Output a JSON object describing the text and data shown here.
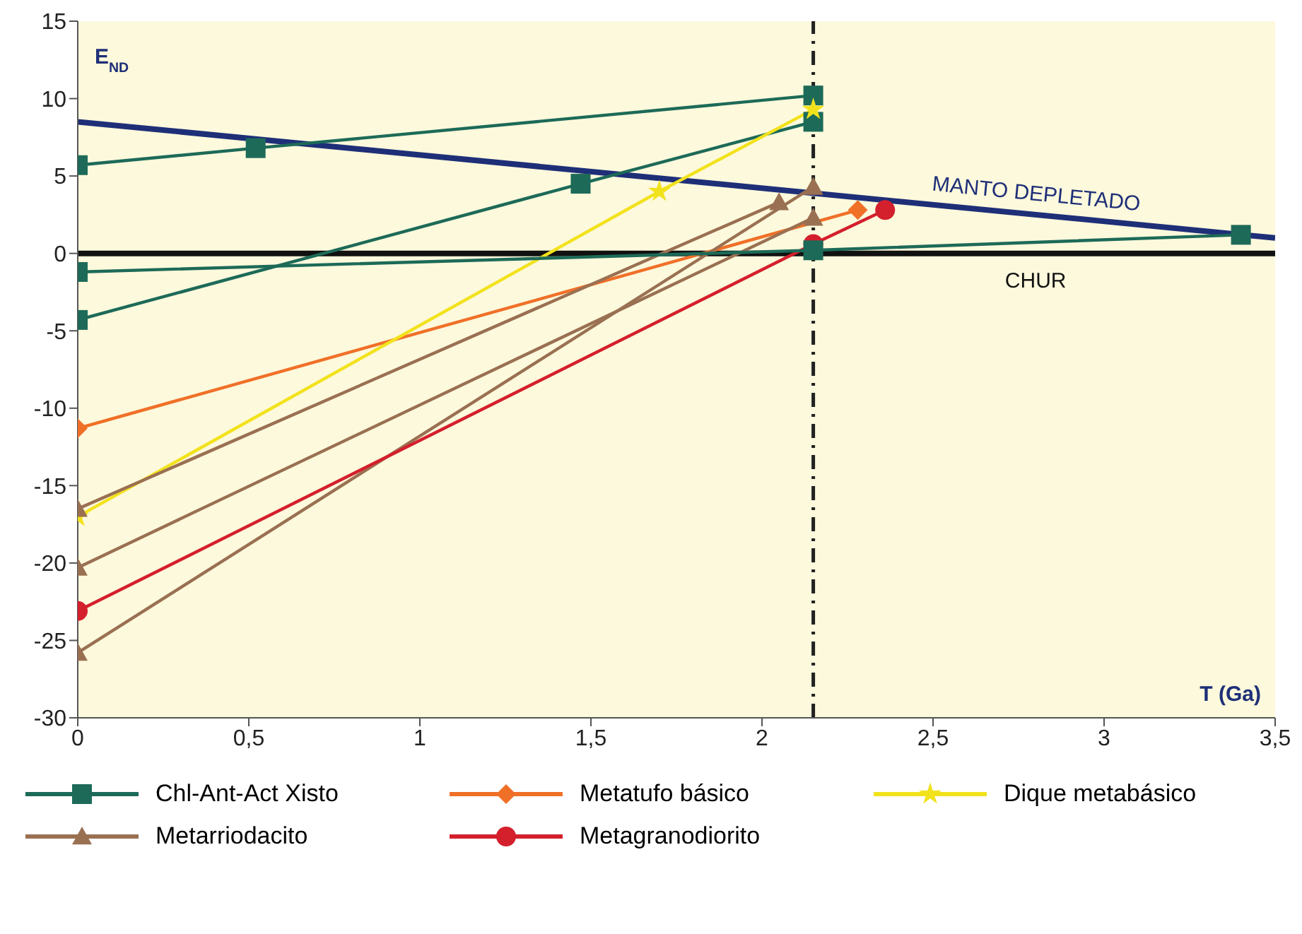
{
  "chart_data": {
    "type": "line",
    "xlabel": "T (Ga)",
    "ylabel": "E$_{ND}$",
    "xlim": [
      0,
      3.5
    ],
    "ylim": [
      -30,
      15
    ],
    "xticks": [
      0,
      {
        "value": 0.5,
        "label": "0,5"
      },
      1,
      {
        "value": 1.5,
        "label": "1,5"
      },
      2,
      {
        "value": 2.5,
        "label": "2,5"
      },
      3,
      {
        "value": 3.5,
        "label": "3,5"
      }
    ],
    "yticks": [
      -30,
      -25,
      -20,
      -15,
      -10,
      -5,
      0,
      5,
      10,
      15
    ],
    "legend": "bottom",
    "ref_lines": [
      {
        "axis": "x",
        "value": 2.15,
        "color": "#222222",
        "line_style": "dashdot"
      }
    ],
    "series": [
      {
        "name": "MANTO DEPLETADO",
        "color": "#1e2f78",
        "marker": "none",
        "x": [
          0,
          3.5
        ],
        "values": [
          8.5,
          1.0
        ]
      },
      {
        "name": "CHUR",
        "color": "#111111",
        "marker": "none",
        "x": [
          0,
          3.5
        ],
        "values": [
          0,
          0
        ]
      },
      {
        "name": "Chl-Ant-Act Xisto",
        "color": "#1d6a58",
        "marker": "square",
        "x": [
          0,
          0.52,
          2.15
        ],
        "values": [
          5.7,
          6.8,
          10.2
        ]
      },
      {
        "color": "#1d6a58",
        "marker": "square",
        "x": [
          0,
          1.47,
          2.15
        ],
        "values": [
          -4.3,
          4.5,
          8.5
        ]
      },
      {
        "name": "Metatufo básico",
        "color": "#f07028",
        "marker": "diamond",
        "x": [
          0,
          2.28
        ],
        "values": [
          -11.3,
          2.8
        ]
      },
      {
        "name": "Dique metabásico",
        "color": "#f2e21c",
        "marker": "star",
        "x": [
          0,
          1.7,
          2.15
        ],
        "values": [
          -17,
          4,
          9.3
        ]
      },
      {
        "name": "Metarriodacito",
        "color": "#9a7052",
        "marker": "triangle",
        "x": [
          0,
          2.05
        ],
        "values": [
          -16.5,
          3.3
        ]
      },
      {
        "color": "#9a7052",
        "marker": "triangle",
        "x": [
          0,
          2.15
        ],
        "values": [
          -20.3,
          2.3
        ]
      },
      {
        "color": "#9a7052",
        "marker": "triangle",
        "x": [
          0,
          2.15
        ],
        "values": [
          -25.8,
          4.3
        ]
      },
      {
        "name": "Metagranodiorito",
        "color": "#d41f2c",
        "marker": "circle",
        "x": [
          0,
          2.15,
          2.36
        ],
        "values": [
          -23.1,
          0.6,
          2.8
        ]
      },
      {
        "color": "#1d6a58",
        "marker": "square",
        "x": [
          0,
          2.15,
          3.4
        ],
        "values": [
          -1.2,
          0.2,
          1.2
        ]
      }
    ]
  }
}
